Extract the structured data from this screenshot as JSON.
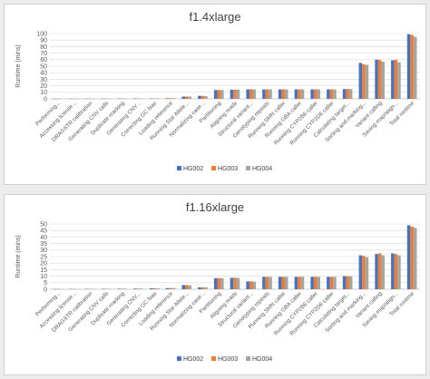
{
  "chart_data": [
    {
      "type": "bar",
      "title": "f1.4xlarge",
      "ylabel": "Runtime (mins)",
      "xlabel": "",
      "ylim": [
        0,
        100
      ],
      "yticks": [
        0,
        10,
        20,
        30,
        40,
        50,
        60,
        70,
        80,
        90,
        100
      ],
      "grid": true,
      "legend_position": "bottom",
      "categories": [
        "Performing...",
        "Accessing license...",
        "DRAGSTR calibration",
        "Generating CNV calls",
        "Duplicate marking",
        "Generating CNV...",
        "Correcting GC bias",
        "Loading reference",
        "Running Star Allele...",
        "Normalizing case...",
        "Partitioning",
        "Aligning reads",
        "Structural variant...",
        "Genotyping repeats",
        "Running SMN caller",
        "Running GBA caller",
        "Running CYP2B6 caller",
        "Running CYP2D6 caller",
        "Calculating target...",
        "Sorting and marking...",
        "Variant calling",
        "Saving map/align...",
        "Total runtime"
      ],
      "series": [
        {
          "name": "HG002",
          "color": "#4472c4",
          "values": [
            0.3,
            0.3,
            0.3,
            0.4,
            0.5,
            0.6,
            0.6,
            1.0,
            3.5,
            4.5,
            13.5,
            14.0,
            14.5,
            14.5,
            14.5,
            14.5,
            14.5,
            14.5,
            15.0,
            55.0,
            60.0,
            59.0,
            99.0
          ]
        },
        {
          "name": "HG003",
          "color": "#ed7d31",
          "values": [
            0.3,
            0.3,
            0.3,
            0.4,
            0.5,
            0.6,
            0.6,
            1.0,
            3.5,
            4.5,
            13.5,
            14.0,
            14.5,
            14.5,
            14.5,
            14.5,
            14.5,
            14.5,
            15.0,
            53.0,
            59.5,
            60.0,
            98.0
          ]
        },
        {
          "name": "HG004",
          "color": "#a5a5a5",
          "values": [
            0.3,
            0.3,
            0.3,
            0.4,
            0.5,
            0.6,
            0.6,
            1.0,
            3.5,
            4.0,
            13.5,
            14.0,
            14.5,
            14.5,
            14.5,
            14.5,
            14.5,
            14.5,
            15.0,
            52.0,
            57.0,
            56.0,
            95.0
          ]
        }
      ]
    },
    {
      "type": "bar",
      "title": "f1.16xlarge",
      "ylabel": "Runtime (mins)",
      "xlabel": "",
      "ylim": [
        0,
        50
      ],
      "yticks": [
        0,
        5,
        10,
        15,
        20,
        25,
        30,
        35,
        40,
        45,
        50
      ],
      "grid": true,
      "legend_position": "bottom",
      "categories": [
        "Performing...",
        "Accessing license...",
        "DRAGSTR calibration",
        "Generating CNV calls",
        "Duplicate marking",
        "Generating CNV...",
        "Correcting GC bias",
        "Loading reference",
        "Running Star Allele...",
        "Normalizing case...",
        "Partitioning",
        "Aligning reads",
        "Structural variant...",
        "Genotyping repeats",
        "Running SMN caller",
        "Running GBA caller",
        "Running CYP2B6 caller",
        "Running CYP2D6 caller",
        "Calculating target...",
        "Sorting and marking...",
        "Variant calling",
        "Saving map/align...",
        "Total runtime"
      ],
      "series": [
        {
          "name": "HG002",
          "color": "#4472c4",
          "values": [
            0.2,
            0.2,
            0.3,
            0.3,
            0.4,
            0.5,
            0.7,
            0.9,
            3.2,
            1.5,
            8.5,
            8.8,
            6.0,
            9.5,
            9.5,
            9.5,
            9.5,
            9.5,
            10.0,
            26.0,
            27.0,
            27.5,
            49.0
          ]
        },
        {
          "name": "HG003",
          "color": "#ed7d31",
          "values": [
            0.2,
            0.2,
            0.3,
            0.3,
            0.4,
            0.5,
            0.7,
            0.9,
            3.2,
            1.5,
            8.5,
            8.8,
            6.0,
            9.5,
            9.5,
            9.5,
            9.5,
            9.5,
            10.0,
            25.5,
            27.5,
            27.0,
            48.0
          ]
        },
        {
          "name": "HG004",
          "color": "#a5a5a5",
          "values": [
            0.2,
            0.2,
            0.3,
            0.3,
            0.4,
            0.5,
            0.7,
            0.9,
            3.0,
            1.5,
            8.5,
            8.6,
            5.8,
            9.5,
            9.5,
            9.5,
            9.5,
            9.5,
            10.0,
            24.5,
            26.0,
            26.0,
            47.0
          ]
        }
      ]
    }
  ]
}
